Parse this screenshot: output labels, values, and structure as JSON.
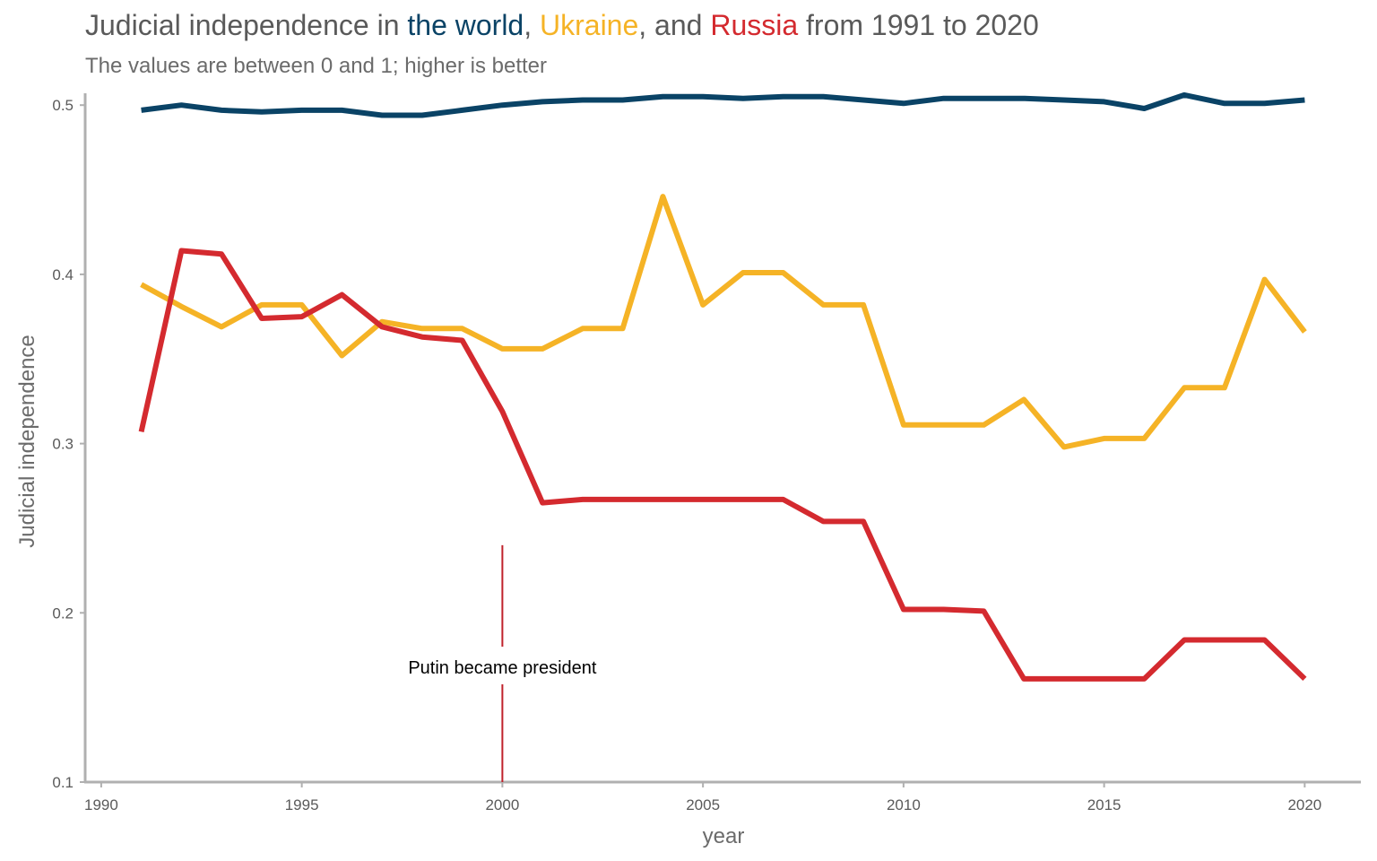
{
  "title": {
    "part1": "Judicial independence in ",
    "world": "the world",
    "sep1": ", ",
    "ukraine": "Ukraine",
    "sep2": ", and ",
    "russia": "Russia",
    "part2": " from 1991 to 2020"
  },
  "subtitle": "The values are between 0 and 1; higher is better",
  "colors": {
    "world": "#0a4366",
    "ukraine": "#f5b326",
    "russia": "#d42a2f",
    "axis": "#b0b0b0",
    "annotation_line": "#c0222b"
  },
  "chart_data": {
    "type": "line",
    "xlabel": "year",
    "ylabel": "Judicial independence",
    "xlim": [
      1989.6,
      2021.4
    ],
    "ylim": [
      0.1,
      0.507
    ],
    "xticks": [
      1990,
      1995,
      2000,
      2005,
      2010,
      2015,
      2020
    ],
    "yticks": [
      0.1,
      0.2,
      0.3,
      0.4,
      0.5
    ],
    "x": [
      1991,
      1992,
      1993,
      1994,
      1995,
      1996,
      1997,
      1998,
      1999,
      2000,
      2001,
      2002,
      2003,
      2004,
      2005,
      2006,
      2007,
      2008,
      2009,
      2010,
      2011,
      2012,
      2013,
      2014,
      2015,
      2016,
      2017,
      2018,
      2019,
      2020
    ],
    "series": [
      {
        "key": "world",
        "name": "the world",
        "values": [
          0.497,
          0.5,
          0.497,
          0.496,
          0.497,
          0.497,
          0.494,
          0.494,
          0.497,
          0.5,
          0.502,
          0.503,
          0.503,
          0.505,
          0.505,
          0.504,
          0.505,
          0.505,
          0.503,
          0.501,
          0.504,
          0.504,
          0.504,
          0.503,
          0.502,
          0.498,
          0.506,
          0.501,
          0.501,
          0.503
        ]
      },
      {
        "key": "ukraine",
        "name": "Ukraine",
        "values": [
          0.394,
          0.381,
          0.369,
          0.382,
          0.382,
          0.352,
          0.372,
          0.368,
          0.368,
          0.356,
          0.356,
          0.368,
          0.368,
          0.446,
          0.382,
          0.401,
          0.401,
          0.382,
          0.382,
          0.311,
          0.311,
          0.311,
          0.326,
          0.298,
          0.303,
          0.303,
          0.333,
          0.333,
          0.397,
          0.366
        ]
      },
      {
        "key": "russia",
        "name": "Russia",
        "values": [
          0.307,
          0.414,
          0.412,
          0.374,
          0.375,
          0.388,
          0.369,
          0.363,
          0.361,
          0.319,
          0.265,
          0.267,
          0.267,
          0.267,
          0.267,
          0.267,
          0.267,
          0.254,
          0.254,
          0.202,
          0.202,
          0.201,
          0.161,
          0.161,
          0.161,
          0.161,
          0.184,
          0.184,
          0.184,
          0.161
        ]
      }
    ],
    "annotation": {
      "text": "Putin became president",
      "x": 2000,
      "y_top": 0.24
    },
    "grid": false,
    "legend": "none"
  }
}
